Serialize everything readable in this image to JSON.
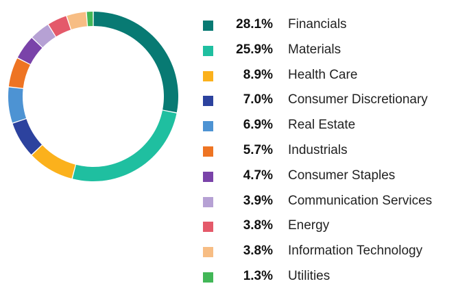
{
  "chart_data": {
    "type": "pie",
    "donut": true,
    "legend_position": "right",
    "series": [
      {
        "label": "Financials",
        "value": 28.1,
        "value_label": "28.1%",
        "color": "#087a73"
      },
      {
        "label": "Materials",
        "value": 25.9,
        "value_label": "25.9%",
        "color": "#1fbfa0"
      },
      {
        "label": "Health Care",
        "value": 8.9,
        "value_label": "8.9%",
        "color": "#fbb11c"
      },
      {
        "label": "Consumer Discretionary",
        "value": 7.0,
        "value_label": "7.0%",
        "color": "#2c429e"
      },
      {
        "label": "Real Estate",
        "value": 6.9,
        "value_label": "6.9%",
        "color": "#4d93d3"
      },
      {
        "label": "Industrials",
        "value": 5.7,
        "value_label": "5.7%",
        "color": "#ee7423"
      },
      {
        "label": "Consumer Staples",
        "value": 4.7,
        "value_label": "4.7%",
        "color": "#7a43a9"
      },
      {
        "label": "Communication Services",
        "value": 3.9,
        "value_label": "3.9%",
        "color": "#b6a1d4"
      },
      {
        "label": "Energy",
        "value": 3.8,
        "value_label": "3.8%",
        "color": "#e45a6a"
      },
      {
        "label": "Information Technology",
        "value": 3.8,
        "value_label": "3.8%",
        "color": "#f7bd84"
      },
      {
        "label": "Utilities",
        "value": 1.3,
        "value_label": "1.3%",
        "color": "#42b757"
      }
    ]
  }
}
